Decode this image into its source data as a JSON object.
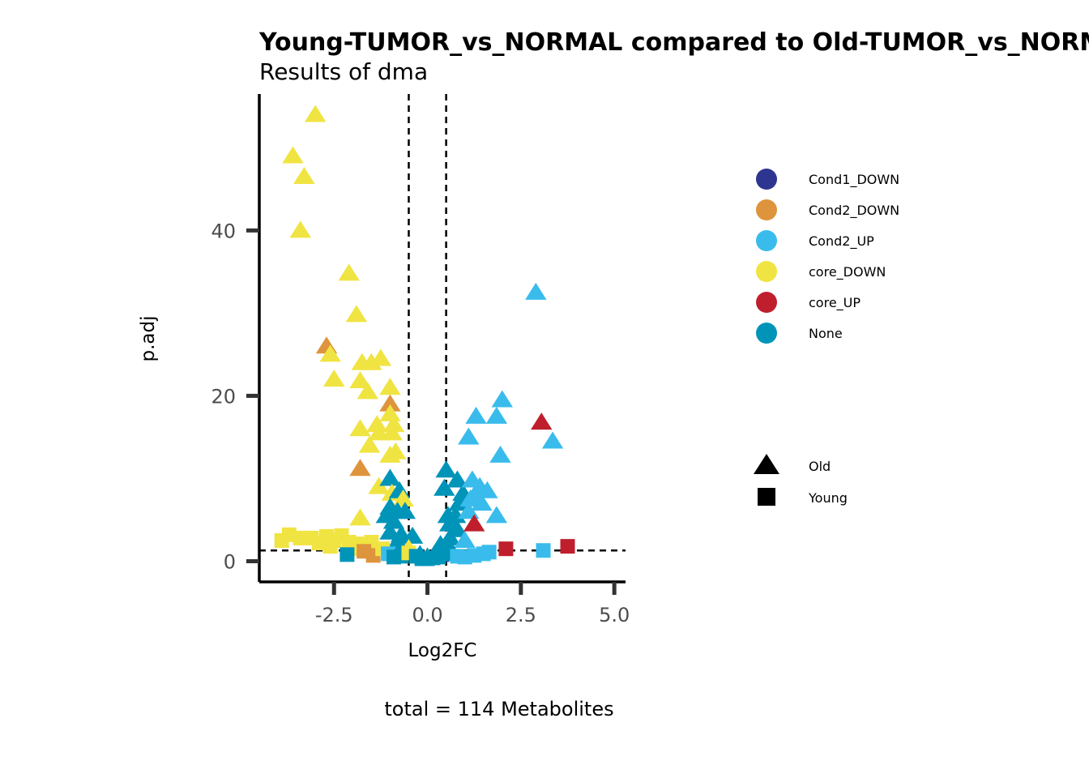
{
  "chart_data": {
    "type": "scatter",
    "title": "Young-TUMOR_vs_NORMAL compared to Old-TUMOR_vs_NORMAL",
    "subtitle": "Results of dma",
    "xlabel": "Log2FC",
    "ylabel": "p.adj",
    "caption": "total = 114 Metabolites",
    "xlim": [
      -4.5,
      5.3
    ],
    "ylim": [
      -2.5,
      56.5
    ],
    "x_ticks": [
      -2.5,
      0.0,
      2.5,
      5.0
    ],
    "x_tick_labels": [
      "-2.5",
      "0.0",
      "2.5",
      "5.0"
    ],
    "y_ticks": [
      0,
      20,
      40
    ],
    "y_tick_labels": [
      "0",
      "20",
      "40"
    ],
    "grid": false,
    "ref_lines": {
      "vertical": [
        -0.5,
        0.5
      ],
      "horizontal": [
        1.3
      ]
    },
    "legend_position": "right",
    "color_legend": [
      {
        "name": "Cond1_DOWN",
        "color": "#2e3590"
      },
      {
        "name": "Cond2_DOWN",
        "color": "#de943c"
      },
      {
        "name": "Cond2_UP",
        "color": "#39bcec"
      },
      {
        "name": "core_DOWN",
        "color": "#f0e442"
      },
      {
        "name": "core_UP",
        "color": "#bf1f2d"
      },
      {
        "name": "None",
        "color": "#0194b9"
      }
    ],
    "shape_legend": [
      {
        "name": "Old",
        "shape": "triangle"
      },
      {
        "name": "Young",
        "shape": "square"
      }
    ],
    "series": [
      {
        "name": "Old",
        "shape": "triangle",
        "points": [
          [
            -3.0,
            54.0,
            "core_DOWN"
          ],
          [
            -3.6,
            49.0,
            "core_DOWN"
          ],
          [
            -3.3,
            46.5,
            "core_DOWN"
          ],
          [
            -3.4,
            40.0,
            "core_DOWN"
          ],
          [
            -2.1,
            34.8,
            "core_DOWN"
          ],
          [
            -1.9,
            29.8,
            "core_DOWN"
          ],
          [
            -2.7,
            26.0,
            "Cond2_DOWN"
          ],
          [
            -2.6,
            25.0,
            "core_DOWN"
          ],
          [
            -1.75,
            24.0,
            "core_DOWN"
          ],
          [
            -1.5,
            24.0,
            "core_DOWN"
          ],
          [
            -1.25,
            24.5,
            "core_DOWN"
          ],
          [
            -2.5,
            22.0,
            "core_DOWN"
          ],
          [
            -1.8,
            21.8,
            "core_DOWN"
          ],
          [
            -1.6,
            20.5,
            "core_DOWN"
          ],
          [
            -1.0,
            21.0,
            "core_DOWN"
          ],
          [
            -1.0,
            19.0,
            "Cond2_DOWN"
          ],
          [
            -1.0,
            17.8,
            "core_DOWN"
          ],
          [
            -0.9,
            16.5,
            "core_DOWN"
          ],
          [
            -1.35,
            16.5,
            "core_DOWN"
          ],
          [
            -1.8,
            16.0,
            "core_DOWN"
          ],
          [
            -1.3,
            15.5,
            "core_DOWN"
          ],
          [
            -0.95,
            15.5,
            "core_DOWN"
          ],
          [
            -1.55,
            14.0,
            "core_DOWN"
          ],
          [
            -1.0,
            12.8,
            "core_DOWN"
          ],
          [
            -0.85,
            13.2,
            "core_DOWN"
          ],
          [
            -1.8,
            11.2,
            "Cond2_DOWN"
          ],
          [
            -1.3,
            9.0,
            "core_DOWN"
          ],
          [
            -1.0,
            10.0,
            "None"
          ],
          [
            -0.95,
            8.2,
            "core_DOWN"
          ],
          [
            -0.75,
            8.5,
            "None"
          ],
          [
            -0.65,
            7.5,
            "core_DOWN"
          ],
          [
            -1.0,
            6.5,
            "None"
          ],
          [
            -0.8,
            6.0,
            "None"
          ],
          [
            -0.6,
            6.0,
            "None"
          ],
          [
            -1.8,
            5.2,
            "core_DOWN"
          ],
          [
            -1.1,
            5.5,
            "None"
          ],
          [
            -0.9,
            4.8,
            "None"
          ],
          [
            -1.0,
            3.5,
            "None"
          ],
          [
            -0.7,
            3.2,
            "None"
          ],
          [
            -0.4,
            3.0,
            "None"
          ],
          [
            -0.8,
            2.3,
            "None"
          ],
          [
            -0.5,
            1.5,
            "core_DOWN"
          ],
          [
            -0.2,
            0.8,
            "None"
          ],
          [
            0.0,
            0.5,
            "None"
          ],
          [
            0.3,
            0.8,
            "Cond1_DOWN"
          ],
          [
            0.5,
            11.0,
            "None"
          ],
          [
            0.8,
            9.8,
            "None"
          ],
          [
            0.45,
            8.8,
            "None"
          ],
          [
            0.95,
            8.2,
            "None"
          ],
          [
            0.85,
            7.0,
            "None"
          ],
          [
            0.55,
            5.5,
            "None"
          ],
          [
            0.75,
            5.5,
            "None"
          ],
          [
            0.6,
            4.5,
            "None"
          ],
          [
            0.8,
            3.8,
            "None"
          ],
          [
            0.6,
            2.8,
            "None"
          ],
          [
            0.35,
            2.0,
            "None"
          ],
          [
            0.6,
            1.5,
            "None"
          ],
          [
            1.1,
            15.0,
            "Cond2_UP"
          ],
          [
            1.3,
            17.5,
            "Cond2_UP"
          ],
          [
            1.85,
            17.5,
            "Cond2_UP"
          ],
          [
            2.0,
            19.5,
            "Cond2_UP"
          ],
          [
            1.95,
            12.8,
            "Cond2_UP"
          ],
          [
            1.2,
            9.8,
            "Cond2_UP"
          ],
          [
            1.6,
            8.5,
            "Cond2_UP"
          ],
          [
            1.4,
            9.0,
            "Cond2_UP"
          ],
          [
            1.3,
            8.0,
            "Cond2_UP"
          ],
          [
            1.15,
            7.5,
            "Cond2_UP"
          ],
          [
            1.45,
            7.0,
            "Cond2_UP"
          ],
          [
            1.1,
            6.0,
            "Cond2_UP"
          ],
          [
            1.85,
            5.5,
            "Cond2_UP"
          ],
          [
            1.0,
            2.5,
            "Cond2_UP"
          ],
          [
            1.25,
            4.5,
            "core_UP"
          ],
          [
            2.9,
            32.5,
            "Cond2_UP"
          ],
          [
            3.35,
            14.5,
            "Cond2_UP"
          ],
          [
            3.05,
            16.8,
            "core_UP"
          ]
        ]
      },
      {
        "name": "Young",
        "shape": "square",
        "points": [
          [
            -3.9,
            2.5,
            "core_DOWN"
          ],
          [
            -3.7,
            3.2,
            "core_DOWN"
          ],
          [
            -3.4,
            2.8,
            "core_DOWN"
          ],
          [
            -3.1,
            2.8,
            "core_DOWN"
          ],
          [
            -2.9,
            2.2,
            "core_DOWN"
          ],
          [
            -2.7,
            3.0,
            "core_DOWN"
          ],
          [
            -2.5,
            2.5,
            "core_DOWN"
          ],
          [
            -2.3,
            3.1,
            "core_DOWN"
          ],
          [
            -2.1,
            2.3,
            "core_DOWN"
          ],
          [
            -1.9,
            2.1,
            "core_DOWN"
          ],
          [
            -1.7,
            2.0,
            "core_DOWN"
          ],
          [
            -1.5,
            2.3,
            "core_DOWN"
          ],
          [
            -2.6,
            1.8,
            "core_DOWN"
          ],
          [
            -2.0,
            1.5,
            "core_DOWN"
          ],
          [
            -1.7,
            1.2,
            "Cond2_DOWN"
          ],
          [
            -1.45,
            0.7,
            "Cond2_DOWN"
          ],
          [
            -2.15,
            0.8,
            "None"
          ],
          [
            -1.2,
            1.5,
            "core_DOWN"
          ],
          [
            -1.05,
            0.9,
            "Cond2_UP"
          ],
          [
            -0.9,
            0.5,
            "None"
          ],
          [
            -0.7,
            0.6,
            "None"
          ],
          [
            -0.5,
            1.0,
            "core_DOWN"
          ],
          [
            -0.3,
            0.6,
            "None"
          ],
          [
            -0.15,
            0.3,
            "None"
          ],
          [
            0.0,
            0.3,
            "None"
          ],
          [
            0.15,
            0.4,
            "None"
          ],
          [
            0.3,
            0.5,
            "None"
          ],
          [
            0.55,
            0.9,
            "None"
          ],
          [
            0.8,
            0.6,
            "Cond2_UP"
          ],
          [
            1.0,
            0.5,
            "Cond2_UP"
          ],
          [
            1.25,
            0.7,
            "Cond2_UP"
          ],
          [
            1.5,
            0.9,
            "Cond2_UP"
          ],
          [
            1.65,
            1.1,
            "Cond2_UP"
          ],
          [
            2.1,
            1.5,
            "core_UP"
          ],
          [
            3.1,
            1.3,
            "Cond2_UP"
          ],
          [
            3.75,
            1.8,
            "core_UP"
          ]
        ]
      }
    ]
  }
}
